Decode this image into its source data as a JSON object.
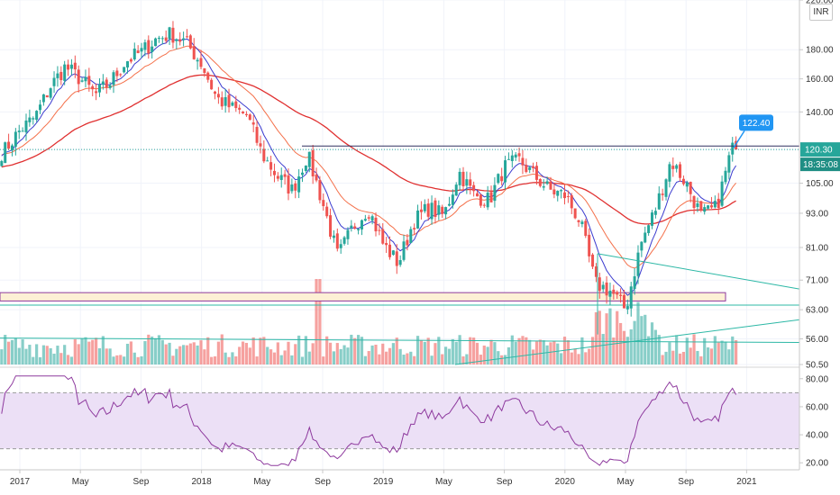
{
  "currency": "INR",
  "price_axis_labels": [
    "220.00",
    "180.00",
    "160.00",
    "140.00",
    "120.30",
    "105.00",
    "93.00",
    "81.00",
    "71.00",
    "63.00",
    "56.00",
    "50.50"
  ],
  "rsi_axis_labels": [
    "80.00",
    "60.00",
    "40.00",
    "20.00"
  ],
  "time_axis_labels": [
    "2017",
    "May",
    "Sep",
    "2018",
    "May",
    "Sep",
    "2019",
    "May",
    "Sep",
    "2020",
    "May",
    "Sep",
    "2021"
  ],
  "callout_price": "122.40",
  "last_price": "120.30",
  "countdown": "18:35:08",
  "colors": {
    "up": "#26a69a",
    "down": "#ef5350",
    "ma_fast": "#3c3ccf",
    "ma_mid": "#f4704a",
    "ma_slow": "#e03030",
    "rsi": "#8e3a9e",
    "rsi_band": "#ece0f6",
    "trend": "#2db8a6",
    "callout": "#2196f3"
  },
  "chart_data": [
    {
      "type": "candlestick",
      "scale": "log",
      "ylim": [
        50.5,
        220
      ],
      "x_ticks": [
        "2017",
        "May",
        "Sep",
        "2018",
        "May",
        "Sep",
        "2019",
        "May",
        "Sep",
        "2020",
        "May",
        "Sep",
        "2021"
      ],
      "y_ticks": [
        50.5,
        56,
        63,
        71,
        81,
        93,
        105,
        120.3,
        140,
        160,
        180,
        220
      ],
      "close_anchors": [
        {
          "date": "2016-11",
          "close": 115
        },
        {
          "date": "2016-12",
          "close": 120
        },
        {
          "date": "2017-01",
          "close": 130
        },
        {
          "date": "2017-02",
          "close": 137
        },
        {
          "date": "2017-03",
          "close": 155
        },
        {
          "date": "2017-04",
          "close": 168
        },
        {
          "date": "2017-05",
          "close": 160
        },
        {
          "date": "2017-06",
          "close": 150
        },
        {
          "date": "2017-07",
          "close": 158
        },
        {
          "date": "2017-08",
          "close": 172
        },
        {
          "date": "2017-09",
          "close": 178
        },
        {
          "date": "2017-10",
          "close": 188
        },
        {
          "date": "2017-11",
          "close": 192
        },
        {
          "date": "2017-12",
          "close": 185
        },
        {
          "date": "2018-01",
          "close": 170
        },
        {
          "date": "2018-02",
          "close": 148
        },
        {
          "date": "2018-03",
          "close": 142
        },
        {
          "date": "2018-04",
          "close": 138
        },
        {
          "date": "2018-05",
          "close": 118
        },
        {
          "date": "2018-06",
          "close": 108
        },
        {
          "date": "2018-07",
          "close": 102
        },
        {
          "date": "2018-08",
          "close": 118
        },
        {
          "date": "2018-09",
          "close": 97
        },
        {
          "date": "2018-10",
          "close": 78
        },
        {
          "date": "2018-11",
          "close": 88
        },
        {
          "date": "2018-12",
          "close": 95
        },
        {
          "date": "2019-01",
          "close": 82
        },
        {
          "date": "2019-02",
          "close": 76
        },
        {
          "date": "2019-03",
          "close": 90
        },
        {
          "date": "2019-04",
          "close": 95
        },
        {
          "date": "2019-05",
          "close": 92
        },
        {
          "date": "2019-06",
          "close": 110
        },
        {
          "date": "2019-07",
          "close": 100
        },
        {
          "date": "2019-08",
          "close": 98
        },
        {
          "date": "2019-09",
          "close": 112
        },
        {
          "date": "2019-10",
          "close": 115
        },
        {
          "date": "2019-11",
          "close": 108
        },
        {
          "date": "2019-12",
          "close": 102
        },
        {
          "date": "2020-01",
          "close": 100
        },
        {
          "date": "2020-02",
          "close": 90
        },
        {
          "date": "2020-03",
          "close": 70
        },
        {
          "date": "2020-04",
          "close": 68
        },
        {
          "date": "2020-05",
          "close": 63
        },
        {
          "date": "2020-06",
          "close": 82
        },
        {
          "date": "2020-07",
          "close": 95
        },
        {
          "date": "2020-08",
          "close": 115
        },
        {
          "date": "2020-09",
          "close": 105
        },
        {
          "date": "2020-10",
          "close": 92
        },
        {
          "date": "2020-11",
          "close": 95
        },
        {
          "date": "2020-12",
          "close": 120.3
        }
      ],
      "last_close": 120.3,
      "callout_value": 122.4,
      "horizontal_levels": [
        122,
        67
      ],
      "series": [
        {
          "type": "moving-average",
          "role": "fast"
        },
        {
          "type": "moving-average",
          "role": "mid"
        },
        {
          "type": "moving-average",
          "role": "slow"
        },
        {
          "type": "bar",
          "role": "volume"
        }
      ]
    },
    {
      "type": "line",
      "role": "RSI",
      "ylim": [
        15,
        85
      ],
      "y_ticks": [
        20,
        40,
        60,
        80
      ],
      "band": [
        30,
        70
      ]
    }
  ]
}
